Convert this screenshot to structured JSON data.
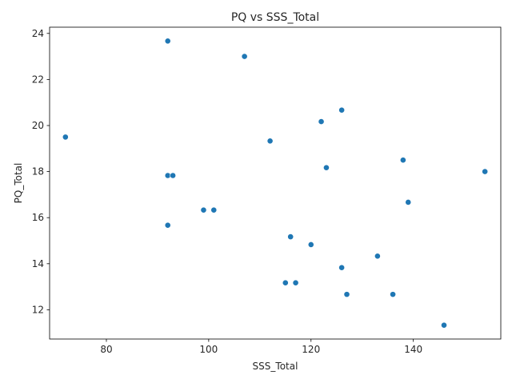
{
  "chart_data": {
    "type": "scatter",
    "title": "PQ vs SSS_Total",
    "xlabel": "SSS_Total",
    "ylabel": "PQ_Total",
    "xlim": [
      68.9,
      157.1
    ],
    "ylim": [
      10.73,
      24.27
    ],
    "xticks": [
      80,
      100,
      120,
      140
    ],
    "yticks": [
      12,
      14,
      16,
      18,
      20,
      22,
      24
    ],
    "grid": false,
    "legend": "none",
    "point_color": "#1f77b4",
    "points": [
      {
        "x": 92,
        "y": 23.67
      },
      {
        "x": 107,
        "y": 23.0
      },
      {
        "x": 126,
        "y": 20.67
      },
      {
        "x": 122,
        "y": 20.17
      },
      {
        "x": 72,
        "y": 19.5
      },
      {
        "x": 112,
        "y": 19.33
      },
      {
        "x": 138,
        "y": 18.5
      },
      {
        "x": 123,
        "y": 18.17
      },
      {
        "x": 154,
        "y": 18.0
      },
      {
        "x": 92,
        "y": 17.83
      },
      {
        "x": 93,
        "y": 17.83
      },
      {
        "x": 139,
        "y": 16.67
      },
      {
        "x": 99,
        "y": 16.33
      },
      {
        "x": 101,
        "y": 16.33
      },
      {
        "x": 92,
        "y": 15.67
      },
      {
        "x": 116,
        "y": 15.17
      },
      {
        "x": 120,
        "y": 14.83
      },
      {
        "x": 133,
        "y": 14.33
      },
      {
        "x": 126,
        "y": 13.83
      },
      {
        "x": 115,
        "y": 13.17
      },
      {
        "x": 117,
        "y": 13.17
      },
      {
        "x": 127,
        "y": 12.67
      },
      {
        "x": 136,
        "y": 12.67
      },
      {
        "x": 146,
        "y": 11.33
      }
    ]
  }
}
